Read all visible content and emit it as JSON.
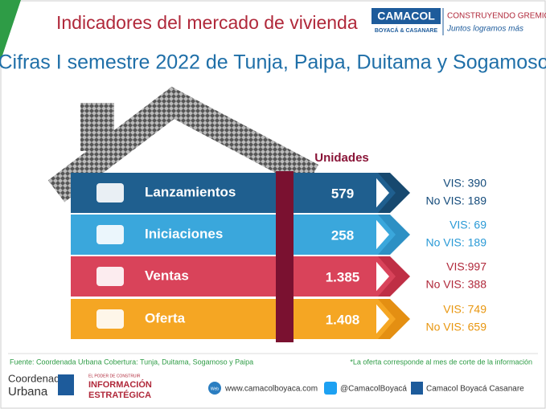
{
  "header": {
    "title": "Indicadores del mercado de vivienda",
    "subtitle": "Cifras I semestre 2022 de Tunja, Paipa, Duitama y Sogamoso"
  },
  "logo": {
    "name": "CAMACOL",
    "region": "BOYACÁ & CASANARE",
    "tagline": "CONSTRUYENDO GREMIO",
    "slogan": "Juntos logramos más"
  },
  "table": {
    "units_header": "Unidades",
    "rows": [
      {
        "label": "Lanzamientos",
        "units": "579",
        "vis": "VIS: 390",
        "no_vis": "No VIS: 189"
      },
      {
        "label": "Iniciaciones",
        "units": "258",
        "vis": "VIS: 69",
        "no_vis": "No VIS: 189"
      },
      {
        "label": "Ventas",
        "units": "1.385",
        "vis": "VIS:997",
        "no_vis": "No VIS: 388"
      },
      {
        "label": "Oferta",
        "units": "1.408",
        "vis": "VIS: 749",
        "no_vis": "No VIS: 659"
      }
    ]
  },
  "footer": {
    "source": "Fuente: Coordenada Urbana Cobertura: Tunja, Duitama, Sogamoso y Paipa",
    "note": "*La oferta corresponde al mes de corte de la información",
    "brand1": "Coordenada",
    "brand2": "Urbana",
    "brand_small": "EL PODER DE CONSTRUIR",
    "info1": "INFORMACIÓN",
    "info2": "ESTRATÉGICA",
    "web_icon": "Web",
    "web": "www.camacolboyaca.com",
    "twitter": "@CamacolBoyacá",
    "facebook": "Camacol Boyacá Casanare"
  }
}
